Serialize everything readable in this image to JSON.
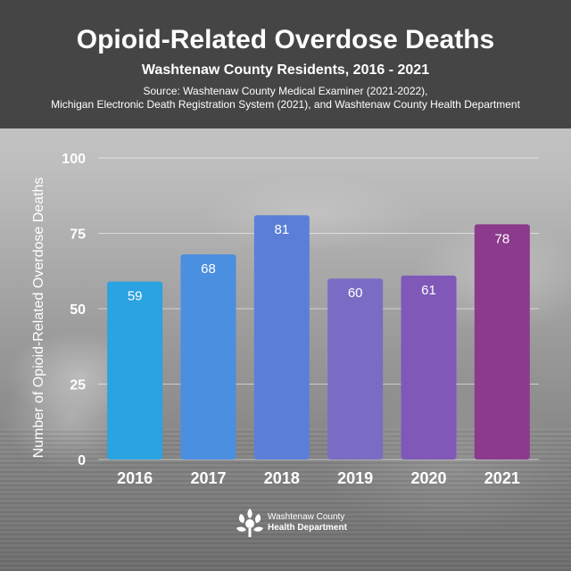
{
  "header": {
    "title": "Opioid-Related Overdose Deaths",
    "subtitle": "Washtenaw County Residents, 2016 - 2021",
    "source_line1": "Source: Washtenaw County Medical Examiner (2021-2022),",
    "source_line2": "Michigan Electronic Death Registration System (2021), and Washtenaw County Health Department"
  },
  "chart_data": {
    "type": "bar",
    "title": "Opioid-Related Overdose Deaths",
    "subtitle": "Washtenaw County Residents, 2016 - 2021",
    "xlabel": "",
    "ylabel": "Number of Opioid-Related Overdose Deaths",
    "categories": [
      "2016",
      "2017",
      "2018",
      "2019",
      "2020",
      "2021"
    ],
    "values": [
      59,
      68,
      81,
      60,
      61,
      78
    ],
    "colors": [
      "#2ba2e2",
      "#4a8fe0",
      "#5b7fd8",
      "#7a6cc4",
      "#7f58b8",
      "#8b3a8c"
    ],
    "ylim": [
      0,
      100
    ],
    "yticks": [
      0,
      25,
      50,
      75,
      100
    ],
    "grid": true,
    "legend": "none",
    "data_labels": true
  },
  "logo": {
    "line1": "Washtenaw County",
    "line2": "Health Department"
  }
}
